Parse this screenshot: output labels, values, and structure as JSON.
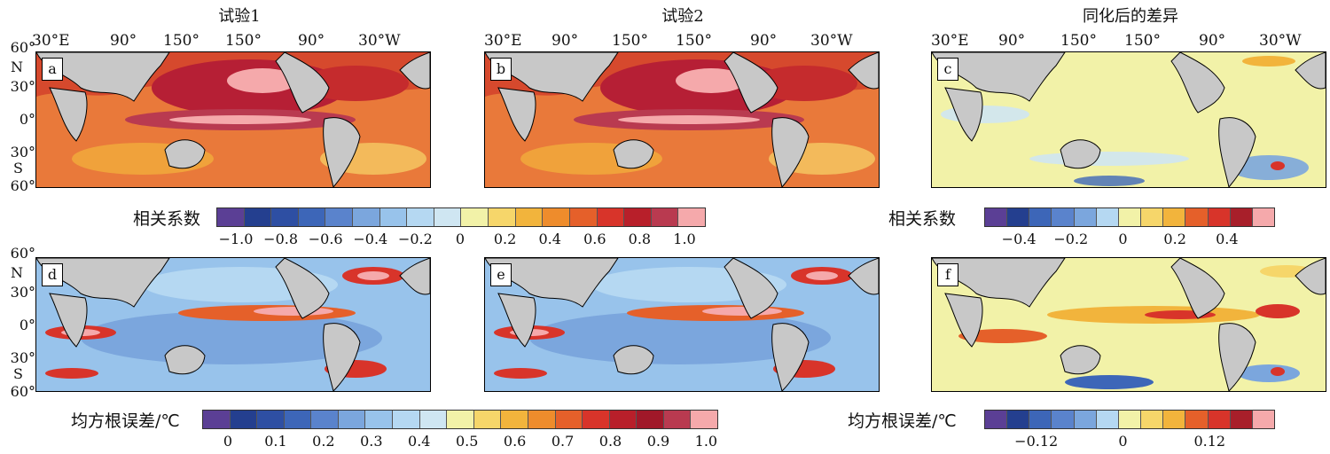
{
  "titles": [
    "试验1",
    "试验2",
    "同化后的差异"
  ],
  "lon_labels": [
    "30°E",
    "90°",
    "150°",
    "150°",
    "90°",
    "30°W"
  ],
  "lat_labels": [
    "60°",
    "N",
    "30°",
    "0°",
    "30°",
    "S",
    "60°"
  ],
  "panels": [
    "a",
    "b",
    "c",
    "d",
    "e",
    "f"
  ],
  "colorbars": {
    "corr": {
      "title": "相关系数",
      "ticks": [
        "−1.0",
        "−0.8",
        "−0.6",
        "−0.4",
        "−0.2",
        "0",
        "0.2",
        "0.4",
        "0.6",
        "0.8",
        "1.0"
      ],
      "colors": [
        "#5b3f95",
        "#243f8f",
        "#2e4fa3",
        "#3d66b8",
        "#5a83cc",
        "#7ba6dd",
        "#98c3eb",
        "#b5d8f2",
        "#cfe6f2",
        "#f2f2a8",
        "#f6d66a",
        "#f2b43c",
        "#ee8c2c",
        "#e5602a",
        "#d8342a",
        "#b81f2a",
        "#b93a50",
        "#f5a9ab"
      ]
    },
    "corr_diff": {
      "title": "相关系数",
      "ticks": [
        "−0.4",
        "−0.2",
        "0",
        "0.2",
        "0.4"
      ],
      "colors": [
        "#5b3f95",
        "#243f8f",
        "#3d66b8",
        "#5a83cc",
        "#7ba6dd",
        "#b5d8f2",
        "#f2f2a8",
        "#f6d66a",
        "#f2b43c",
        "#e5602a",
        "#d8342a",
        "#a81f2a",
        "#f5a9ab"
      ]
    },
    "rmse": {
      "title": "均方根误差/℃",
      "ticks": [
        "0",
        "0.1",
        "0.2",
        "0.3",
        "0.4",
        "0.5",
        "0.6",
        "0.7",
        "0.8",
        "0.9",
        "1.0"
      ],
      "colors": [
        "#5b3f95",
        "#243f8f",
        "#2e4fa3",
        "#3d66b8",
        "#5a83cc",
        "#7ba6dd",
        "#98c3eb",
        "#b5d8f2",
        "#cfe6f2",
        "#f2f2a8",
        "#f6d66a",
        "#f2b43c",
        "#ee8c2c",
        "#e5602a",
        "#d8342a",
        "#b81f2a",
        "#a01829",
        "#b93a50",
        "#f5a9ab"
      ]
    },
    "rmse_diff": {
      "title": "均方根误差/℃",
      "ticks": [
        "−0.12",
        "0",
        "0.12"
      ],
      "colors": [
        "#5b3f95",
        "#243f8f",
        "#3d66b8",
        "#5a83cc",
        "#7ba6dd",
        "#b5d8f2",
        "#f2f2a8",
        "#f6d66a",
        "#f2b43c",
        "#e5602a",
        "#d8342a",
        "#a81f2a",
        "#f5a9ab"
      ]
    }
  },
  "chart_data": {
    "type": "heatmap",
    "panels": [
      {
        "label": "a",
        "title": "试验1",
        "variable": "相关系数",
        "range": [
          -1.0,
          1.0
        ]
      },
      {
        "label": "b",
        "title": "试验2",
        "variable": "相关系数",
        "range": [
          -1.0,
          1.0
        ]
      },
      {
        "label": "c",
        "title": "同化后的差异",
        "variable": "相关系数",
        "range": [
          -0.5,
          0.5
        ]
      },
      {
        "label": "d",
        "variable": "均方根误差/℃",
        "range": [
          0,
          1.0
        ]
      },
      {
        "label": "e",
        "variable": "均方根误差/℃",
        "range": [
          0,
          1.0
        ]
      },
      {
        "label": "f",
        "variable": "均方根误差/℃",
        "range": [
          -0.18,
          0.18
        ]
      }
    ],
    "x_ticks": [
      "30°E",
      "90°",
      "150°",
      "150°",
      "90°",
      "30°W"
    ],
    "y_ticks": [
      "60°N",
      "30°N",
      "0°",
      "30°S",
      "60°S"
    ]
  }
}
